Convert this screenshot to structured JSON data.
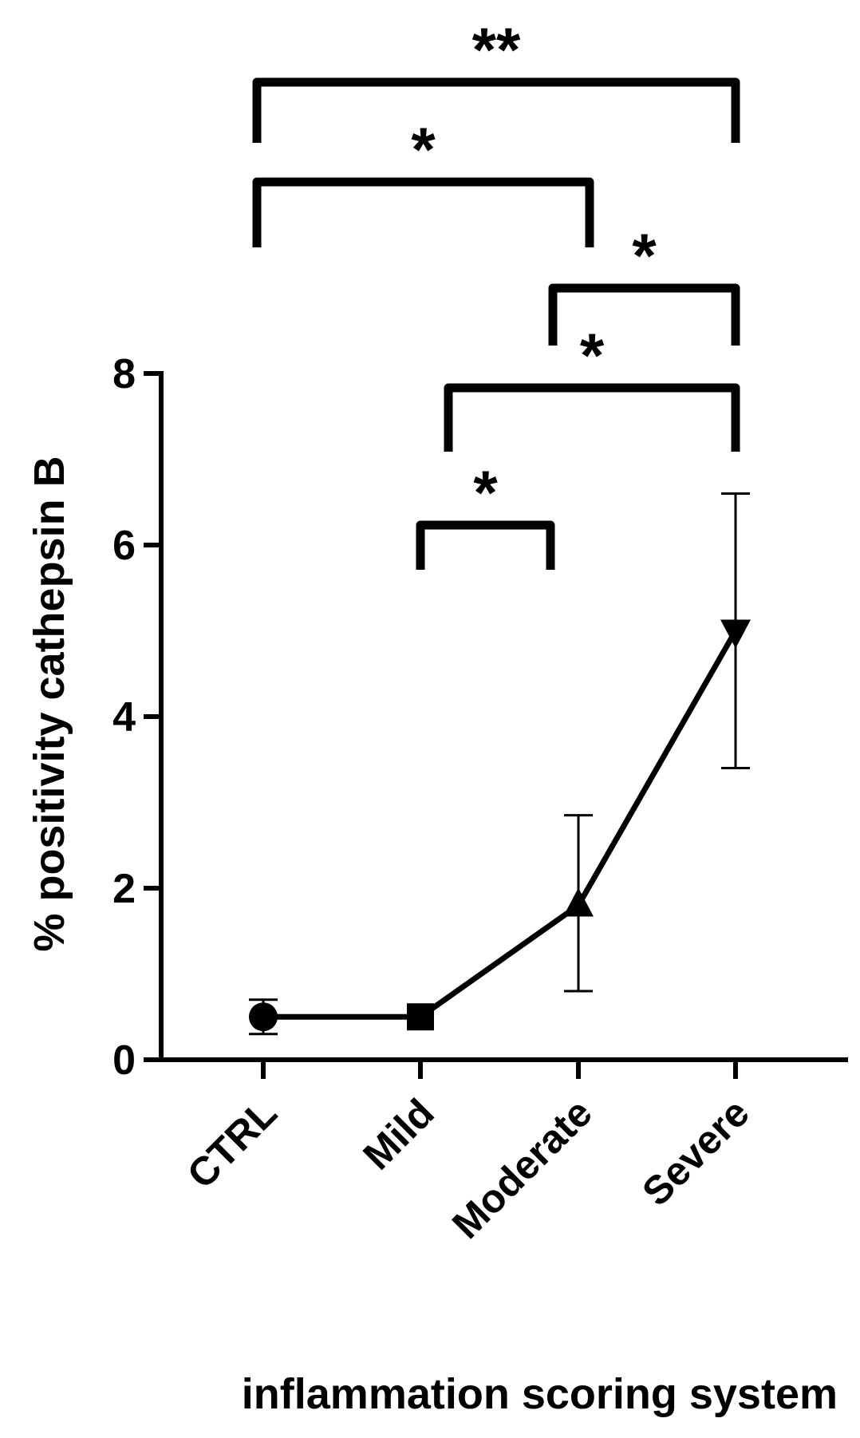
{
  "chart_data": {
    "type": "line",
    "title": "",
    "xlabel": "inflammation scoring system",
    "ylabel": "% positivity cathepsin B",
    "categories": [
      "CTRL",
      "Mild",
      "Moderate",
      "Severe"
    ],
    "ylim": [
      0,
      8
    ],
    "yticks": [
      "0",
      "2",
      "4",
      "6",
      "8"
    ],
    "grid": false,
    "legend": "none",
    "series": [
      {
        "values": [
          0.5,
          0.5,
          1.8,
          5.0
        ],
        "error_upper": [
          0.7,
          0.5,
          2.85,
          6.6
        ],
        "error_lower": [
          0.3,
          0.5,
          0.8,
          3.4
        ],
        "markers": [
          "circle",
          "square",
          "triangle-up",
          "triangle-down"
        ]
      }
    ],
    "significance": [
      {
        "from": "Mild",
        "to": "Moderate",
        "label": "*"
      },
      {
        "from": "Mild",
        "to": "Severe",
        "label": "*"
      },
      {
        "from": "Moderate",
        "to": "Severe",
        "label": "*"
      },
      {
        "from": "CTRL",
        "to": "Moderate",
        "label": "*"
      },
      {
        "from": "CTRL",
        "to": "Severe",
        "label": "**"
      }
    ],
    "color": "#000000"
  }
}
